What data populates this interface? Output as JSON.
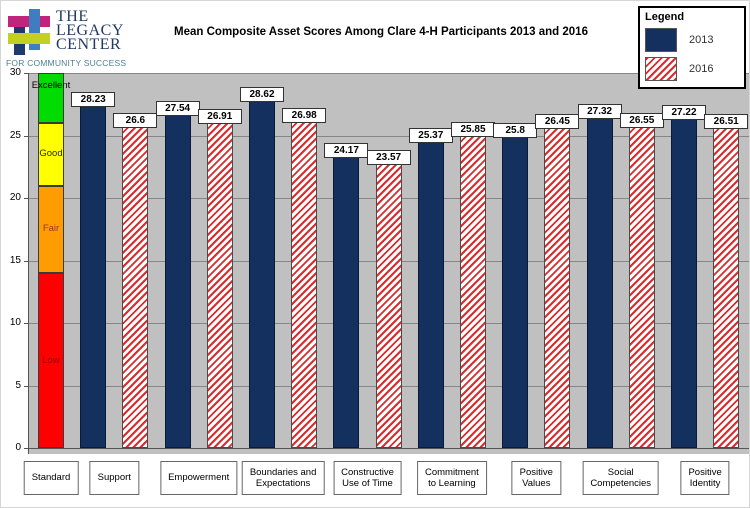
{
  "logo": {
    "line1": "THE",
    "line2": "LEGACY",
    "line3": "CENTER",
    "tagline": "FOR COMMUNITY SUCCESS",
    "colors": {
      "navy_block": "#1c3a6e",
      "blue_block": "#3f7cc0",
      "magenta_block": "#c0257c",
      "green_block": "#c3cf21",
      "text_navy": "#1f3864",
      "tagline_teal": "#4d7f93"
    }
  },
  "title": "Mean Composite Asset Scores Among Clare 4-H Participants 2013 and 2016",
  "legend": {
    "title": "Legend",
    "items": [
      {
        "label": "2013",
        "pattern": "solid",
        "color": "#13305f"
      },
      {
        "label": "2016",
        "pattern": "hatch",
        "color": "#da2c2c"
      }
    ]
  },
  "colors": {
    "plot_background": "#c0c0c0",
    "gridline": "#868686",
    "bar_2013": "#13305f",
    "hatch_2016": "#da2c2c"
  },
  "chart_data": {
    "type": "bar",
    "title": "Mean Composite Asset Scores Among Clare 4-H Participants 2013 and 2016",
    "xlabel": "",
    "ylabel": "",
    "ylim": [
      0,
      30
    ],
    "yticks": [
      0,
      5,
      10,
      15,
      20,
      25,
      30
    ],
    "grid": true,
    "legend_position": "top-right",
    "categories": [
      "Support",
      "Empowerment",
      "Boundaries and Expectations",
      "Constructive Use of Time",
      "Commitment to Learning",
      "Positive Values",
      "Social Competencies",
      "Positive Identity"
    ],
    "category_label_lines": [
      [
        "Standard"
      ],
      [
        "Support"
      ],
      [
        "Empowerment"
      ],
      [
        "Boundaries and",
        "Expectations"
      ],
      [
        "Constructive",
        "Use of Time"
      ],
      [
        "Commitment",
        "to Learning"
      ],
      [
        "Positive",
        "Values"
      ],
      [
        "Social",
        "Competencies"
      ],
      [
        "Positive",
        "Identity"
      ]
    ],
    "series": [
      {
        "name": "2013",
        "values": [
          28.23,
          27.54,
          28.62,
          24.17,
          25.37,
          25.8,
          27.32,
          27.22
        ]
      },
      {
        "name": "2016",
        "values": [
          26.6,
          26.91,
          26.98,
          23.57,
          25.85,
          26.45,
          26.55,
          26.51
        ]
      }
    ],
    "standard_bands": [
      {
        "label": "Low",
        "from": 0,
        "to": 14,
        "color": "#fe0000",
        "text_color": "#8b0000"
      },
      {
        "label": "Fair",
        "from": 14,
        "to": 21,
        "color": "#ff9d00",
        "text_color": "#943634"
      },
      {
        "label": "Good",
        "from": 21,
        "to": 26,
        "color": "#ffff00",
        "text_color": "#2b2b00"
      },
      {
        "label": "Excellent",
        "from": 26,
        "to": 30,
        "color": "#00dc00",
        "text_color": "#000000"
      }
    ]
  }
}
